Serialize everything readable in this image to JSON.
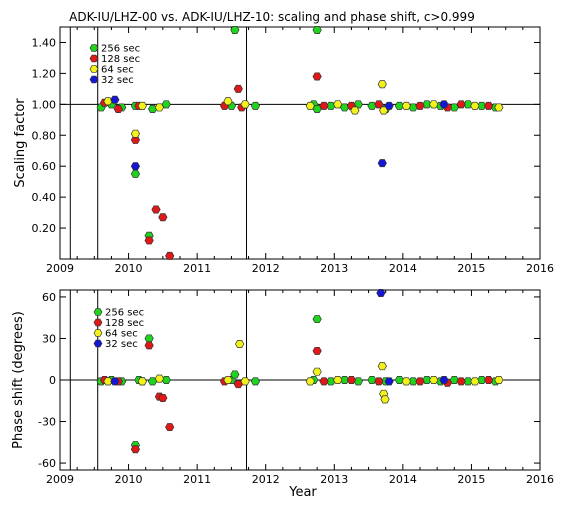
{
  "chart_data": [
    {
      "type": "scatter",
      "title": "ADK-IU/LHZ-00 vs. ADK-IU/LHZ-10: scaling and phase shift, c>0.999",
      "ylabel": "Scaling factor",
      "xlabel": "",
      "xlim": [
        2009,
        2016
      ],
      "ylim": [
        0.0,
        1.5
      ],
      "xticks": [
        "2009",
        "2010",
        "2011",
        "2012",
        "2013",
        "2014",
        "2015",
        "2016"
      ],
      "yticks": [
        "0.20",
        "0.40",
        "0.60",
        "0.80",
        "1.00",
        "1.20",
        "1.40"
      ],
      "reference_line": 1.0,
      "event_lines": [
        2009.15,
        2009.55,
        2011.72
      ],
      "legend": {
        "placement": "top-left",
        "entries": [
          "256 sec",
          "128 sec",
          "64 sec",
          "32 sec"
        ]
      },
      "series": [
        {
          "name": "256 sec",
          "color": "#1ed41e",
          "points": [
            [
              2009.6,
              0.98
            ],
            [
              2009.75,
              1.0
            ],
            [
              2009.9,
              0.98
            ],
            [
              2010.1,
              0.55
            ],
            [
              2010.1,
              0.99
            ],
            [
              2010.3,
              0.15
            ],
            [
              2010.35,
              0.97
            ],
            [
              2010.55,
              1.0
            ],
            [
              2011.5,
              0.99
            ],
            [
              2011.55,
              1.5
            ],
            [
              2011.85,
              0.99
            ],
            [
              2012.7,
              1.0
            ],
            [
              2012.75,
              1.5
            ],
            [
              2012.75,
              0.97
            ],
            [
              2012.95,
              0.99
            ],
            [
              2013.15,
              0.98
            ],
            [
              2013.35,
              1.0
            ],
            [
              2013.55,
              0.99
            ],
            [
              2013.75,
              0.97
            ],
            [
              2013.95,
              0.99
            ],
            [
              2014.15,
              0.98
            ],
            [
              2014.35,
              1.0
            ],
            [
              2014.55,
              0.99
            ],
            [
              2014.75,
              0.98
            ],
            [
              2014.95,
              1.0
            ],
            [
              2015.15,
              0.99
            ],
            [
              2015.35,
              0.98
            ]
          ]
        },
        {
          "name": "128 sec",
          "color": "#e01818",
          "points": [
            [
              2009.65,
              1.01
            ],
            [
              2009.85,
              0.97
            ],
            [
              2010.1,
              0.77
            ],
            [
              2010.15,
              0.99
            ],
            [
              2010.3,
              0.12
            ],
            [
              2010.4,
              0.32
            ],
            [
              2010.5,
              0.27
            ],
            [
              2010.6,
              0.02
            ],
            [
              2011.4,
              0.99
            ],
            [
              2011.6,
              1.1
            ],
            [
              2011.65,
              0.98
            ],
            [
              2012.75,
              1.18
            ],
            [
              2012.85,
              0.99
            ],
            [
              2013.25,
              0.99
            ],
            [
              2013.65,
              1.0
            ],
            [
              2014.25,
              0.99
            ],
            [
              2014.65,
              0.98
            ],
            [
              2014.85,
              1.0
            ],
            [
              2015.25,
              0.99
            ]
          ]
        },
        {
          "name": "64 sec",
          "color": "#f2f21a",
          "points": [
            [
              2009.7,
              1.02
            ],
            [
              2010.1,
              0.81
            ],
            [
              2010.2,
              0.99
            ],
            [
              2010.45,
              0.98
            ],
            [
              2011.45,
              1.02
            ],
            [
              2011.7,
              1.0
            ],
            [
              2012.65,
              0.99
            ],
            [
              2013.05,
              1.0
            ],
            [
              2013.3,
              0.96
            ],
            [
              2013.7,
              1.13
            ],
            [
              2013.72,
              0.96
            ],
            [
              2014.05,
              0.99
            ],
            [
              2014.45,
              1.0
            ],
            [
              2015.05,
              0.99
            ],
            [
              2015.4,
              0.98
            ]
          ]
        },
        {
          "name": "32 sec",
          "color": "#1515d6",
          "points": [
            [
              2009.8,
              1.03
            ],
            [
              2010.1,
              0.6
            ],
            [
              2013.7,
              0.62
            ],
            [
              2013.8,
              0.99
            ],
            [
              2014.6,
              1.0
            ]
          ]
        }
      ]
    },
    {
      "type": "scatter",
      "title": "",
      "ylabel": "Phase shift (degrees)",
      "xlabel": "Year",
      "xlim": [
        2009,
        2016
      ],
      "ylim": [
        -65,
        65
      ],
      "xticks": [
        "2009",
        "2010",
        "2011",
        "2012",
        "2013",
        "2014",
        "2015",
        "2016"
      ],
      "yticks": [
        "-60",
        "-30",
        "0",
        "30",
        "60"
      ],
      "reference_line": 0,
      "event_lines": [
        2009.15,
        2009.55,
        2011.72
      ],
      "legend": {
        "placement": "top-left",
        "entries": [
          "256 sec",
          "128 sec",
          "64 sec",
          "32 sec"
        ]
      },
      "series": [
        {
          "name": "256 sec",
          "color": "#1ed41e",
          "points": [
            [
              2009.6,
              -1
            ],
            [
              2009.75,
              0
            ],
            [
              2009.9,
              -1
            ],
            [
              2010.1,
              -47
            ],
            [
              2010.15,
              0
            ],
            [
              2010.3,
              30
            ],
            [
              2010.35,
              -1
            ],
            [
              2010.55,
              0
            ],
            [
              2011.5,
              0
            ],
            [
              2011.55,
              4
            ],
            [
              2011.85,
              -1
            ],
            [
              2012.7,
              0
            ],
            [
              2012.75,
              44
            ],
            [
              2012.95,
              -1
            ],
            [
              2013.15,
              0
            ],
            [
              2013.35,
              -1
            ],
            [
              2013.55,
              0
            ],
            [
              2013.75,
              -1
            ],
            [
              2013.95,
              0
            ],
            [
              2014.15,
              -1
            ],
            [
              2014.35,
              0
            ],
            [
              2014.55,
              -1
            ],
            [
              2014.75,
              0
            ],
            [
              2014.95,
              -1
            ],
            [
              2015.15,
              0
            ],
            [
              2015.35,
              -1
            ]
          ]
        },
        {
          "name": "128 sec",
          "color": "#e01818",
          "points": [
            [
              2009.65,
              0
            ],
            [
              2009.85,
              -1
            ],
            [
              2010.1,
              -50
            ],
            [
              2010.2,
              -1
            ],
            [
              2010.3,
              25
            ],
            [
              2010.45,
              -12
            ],
            [
              2010.5,
              -13
            ],
            [
              2010.6,
              -34
            ],
            [
              2011.4,
              -1
            ],
            [
              2011.6,
              -3
            ],
            [
              2012.75,
              21
            ],
            [
              2012.85,
              -1
            ],
            [
              2013.25,
              0
            ],
            [
              2013.65,
              -1
            ],
            [
              2014.25,
              -1
            ],
            [
              2014.65,
              -2
            ],
            [
              2014.85,
              -1
            ],
            [
              2015.25,
              0
            ]
          ]
        },
        {
          "name": "64 sec",
          "color": "#f2f21a",
          "points": [
            [
              2009.7,
              -1
            ],
            [
              2010.2,
              -1
            ],
            [
              2010.45,
              1
            ],
            [
              2011.45,
              0
            ],
            [
              2011.62,
              26
            ],
            [
              2011.7,
              -1
            ],
            [
              2012.65,
              -1
            ],
            [
              2012.75,
              6
            ],
            [
              2013.05,
              0
            ],
            [
              2013.7,
              10
            ],
            [
              2013.72,
              -10
            ],
            [
              2013.74,
              -14
            ],
            [
              2014.05,
              -1
            ],
            [
              2014.45,
              0
            ],
            [
              2015.05,
              -1
            ],
            [
              2015.4,
              0
            ]
          ]
        },
        {
          "name": "32 sec",
          "color": "#1515d6",
          "points": [
            [
              2009.8,
              -1
            ],
            [
              2013.68,
              65
            ],
            [
              2013.8,
              -1
            ],
            [
              2014.6,
              0
            ]
          ]
        }
      ]
    }
  ]
}
